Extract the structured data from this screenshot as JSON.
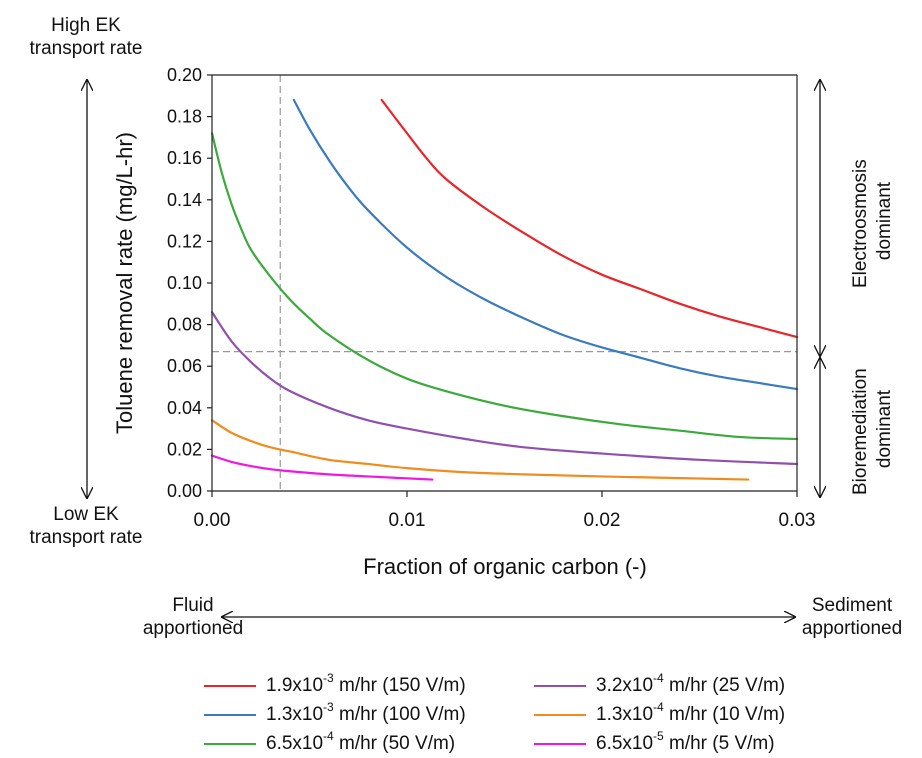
{
  "chart_data": {
    "type": "line",
    "xlabel": "Fraction of organic carbon (-)",
    "ylabel": "Toluene removal rate (mg/L-hr)",
    "xlim": [
      0,
      0.03
    ],
    "ylim": [
      0,
      0.2
    ],
    "xticks": [
      "0.00",
      "0.01",
      "0.02",
      "0.03"
    ],
    "yticks": [
      "0.00",
      "0.02",
      "0.04",
      "0.06",
      "0.08",
      "0.10",
      "0.12",
      "0.14",
      "0.16",
      "0.18",
      "0.20"
    ],
    "grid": false,
    "legend_position": "bottom",
    "reference_lines": {
      "vertical_x": 0.0035,
      "horizontal_y": 0.067
    },
    "series": [
      {
        "name_base": "1.9x10",
        "name_exp": "-3",
        "name_rest": " m/hr (150 V/m)",
        "color": "#e8262a",
        "x": [
          0.0087,
          0.01,
          0.011,
          0.012,
          0.014,
          0.016,
          0.018,
          0.02,
          0.022,
          0.024,
          0.026,
          0.028,
          0.03
        ],
        "y": [
          0.188,
          0.172,
          0.16,
          0.15,
          0.136,
          0.124,
          0.113,
          0.104,
          0.097,
          0.09,
          0.084,
          0.079,
          0.074
        ]
      },
      {
        "name_base": "1.3x10",
        "name_exp": "-3",
        "name_rest": " m/hr (100 V/m)",
        "color": "#3a7bbf",
        "x": [
          0.0042,
          0.005,
          0.006,
          0.007,
          0.008,
          0.01,
          0.012,
          0.014,
          0.016,
          0.018,
          0.02,
          0.022,
          0.024,
          0.026,
          0.028,
          0.03
        ],
        "y": [
          0.188,
          0.174,
          0.159,
          0.146,
          0.135,
          0.117,
          0.103,
          0.092,
          0.083,
          0.075,
          0.069,
          0.064,
          0.059,
          0.055,
          0.052,
          0.049
        ]
      },
      {
        "name_base": "6.5x10",
        "name_exp": "-4",
        "name_rest": " m/hr (50 V/m)",
        "color": "#3aaa3a",
        "x": [
          0.0,
          0.0005,
          0.001,
          0.0015,
          0.002,
          0.003,
          0.004,
          0.005,
          0.006,
          0.008,
          0.01,
          0.012,
          0.015,
          0.018,
          0.021,
          0.024,
          0.027,
          0.03
        ],
        "y": [
          0.172,
          0.153,
          0.138,
          0.126,
          0.116,
          0.103,
          0.092,
          0.083,
          0.075,
          0.063,
          0.054,
          0.048,
          0.041,
          0.036,
          0.032,
          0.029,
          0.026,
          0.025
        ]
      },
      {
        "name_base": "3.2x10",
        "name_exp": "-4",
        "name_rest": " m/hr (25 V/m)",
        "color": "#9050b0",
        "x": [
          0.0,
          0.001,
          0.002,
          0.003,
          0.004,
          0.006,
          0.008,
          0.01,
          0.013,
          0.016,
          0.02,
          0.025,
          0.03
        ],
        "y": [
          0.086,
          0.072,
          0.062,
          0.054,
          0.048,
          0.04,
          0.034,
          0.03,
          0.025,
          0.021,
          0.018,
          0.015,
          0.013
        ]
      },
      {
        "name_base": "1.3x10",
        "name_exp": "-4",
        "name_rest": " m/hr (10 V/m)",
        "color": "#f08c1e",
        "x": [
          0.0,
          0.001,
          0.002,
          0.003,
          0.004,
          0.006,
          0.008,
          0.01,
          0.013,
          0.016,
          0.02,
          0.0275
        ],
        "y": [
          0.034,
          0.028,
          0.024,
          0.021,
          0.019,
          0.015,
          0.013,
          0.011,
          0.009,
          0.008,
          0.007,
          0.0055
        ]
      },
      {
        "name_base": "6.5x10",
        "name_exp": "-5",
        "name_rest": " m/hr (5 V/m)",
        "color": "#f018e0",
        "x": [
          0.0,
          0.001,
          0.002,
          0.003,
          0.004,
          0.006,
          0.008,
          0.0113
        ],
        "y": [
          0.017,
          0.014,
          0.012,
          0.0105,
          0.0095,
          0.008,
          0.007,
          0.0055
        ]
      }
    ]
  },
  "annotations": {
    "top_left": "High EK\ntransport rate",
    "bottom_left": "Low EK\ntransport rate",
    "right_top": "Electroosmosis\ndominant",
    "right_bottom": "Bioremediation\ndominant",
    "bottom_left_arrow": "Fluid\napportioned",
    "bottom_right_arrow": "Sediment\napportioned"
  }
}
